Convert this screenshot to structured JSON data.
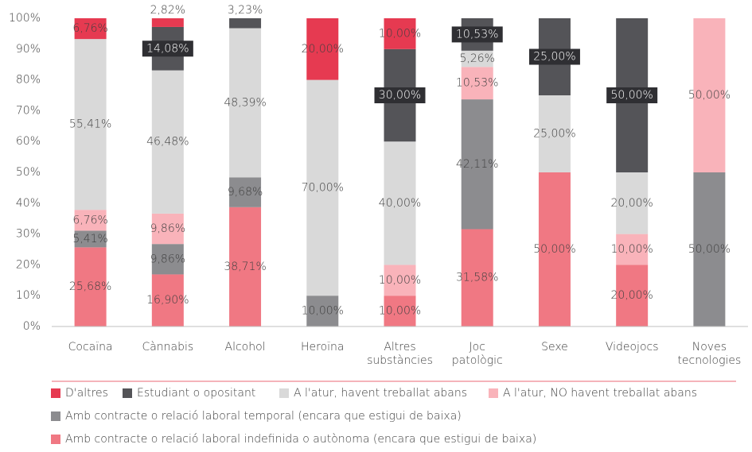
{
  "chart_data": {
    "type": "stacked_bar",
    "categories": [
      "Cocaïna",
      "Cànnabis",
      "Alcohol",
      "Heroïna",
      "Altres substàncies",
      "Joc patològic",
      "Sexe",
      "Videojocs",
      "Noves tecnologies"
    ],
    "series": [
      {
        "name": "Amb contracte o relació laboral indefinida o autònoma (encara que estigui de baixa)",
        "color": "#f07883",
        "values": [
          25.68,
          16.9,
          38.71,
          null,
          10.0,
          31.58,
          50.0,
          20.0,
          null
        ],
        "value_labels": [
          "25,68%",
          "16,90%",
          "38,71%",
          null,
          "10,00%",
          "31,58%",
          "50,00%",
          "20,00%",
          null
        ]
      },
      {
        "name": "Amb contracte o relació laboral temporal (encara que estigui de baixa)",
        "color": "#8c8c8f",
        "values": [
          5.41,
          9.86,
          9.68,
          10.0,
          null,
          42.11,
          null,
          null,
          50.0
        ],
        "value_labels": [
          "5,41%",
          "9,86%",
          "9,68%",
          "10,00%",
          null,
          "42,11%",
          null,
          null,
          "50,00%"
        ]
      },
      {
        "name": "A l'atur, NO havent treballat abans",
        "color": "#f9b3ba",
        "values": [
          6.76,
          9.86,
          null,
          null,
          10.0,
          10.53,
          null,
          10.0,
          50.0
        ],
        "value_labels": [
          "6,76%",
          "9,86%",
          null,
          null,
          "10,00%",
          "10,53%",
          null,
          "10,00%",
          "50,00%"
        ]
      },
      {
        "name": "A l'atur, havent treballat abans",
        "color": "#d9d9d9",
        "values": [
          55.41,
          46.48,
          48.39,
          70.0,
          40.0,
          5.26,
          25.0,
          20.0,
          null
        ],
        "value_labels": [
          "55,41%",
          "46,48%",
          "48,39%",
          "70,00%",
          "40,00%",
          "5,26%",
          "25,00%",
          "20,00%",
          null
        ]
      },
      {
        "name": "Estudiant o opositant",
        "color": "#545458",
        "values": [
          null,
          14.08,
          3.23,
          null,
          30.0,
          10.53,
          25.0,
          50.0,
          null
        ],
        "value_labels": [
          null,
          "14,08%",
          "3,23%",
          null,
          "30,00%",
          "10,53%",
          "25,00%",
          "50,00%",
          null
        ]
      },
      {
        "name": "D'altres",
        "color": "#e63a51",
        "values": [
          6.76,
          2.82,
          null,
          20.0,
          10.0,
          null,
          null,
          null,
          null
        ],
        "value_labels": [
          "6,76%",
          "2,82%",
          null,
          "20,00%",
          "10,00%",
          null,
          null,
          null,
          null
        ]
      }
    ],
    "ylim": [
      0,
      100
    ],
    "yticks": [
      {
        "value": 0,
        "label": "0%"
      },
      {
        "value": 10,
        "label": "10%"
      },
      {
        "value": 20,
        "label": "20%"
      },
      {
        "value": 30,
        "label": "30%"
      },
      {
        "value": 40,
        "label": "40%"
      },
      {
        "value": 50,
        "label": "50%"
      },
      {
        "value": 60,
        "label": "60%"
      },
      {
        "value": 70,
        "label": "70%"
      },
      {
        "value": 80,
        "label": "80%"
      },
      {
        "value": 90,
        "label": "90%"
      },
      {
        "value": 100,
        "label": "100%"
      }
    ],
    "grid": false
  }
}
